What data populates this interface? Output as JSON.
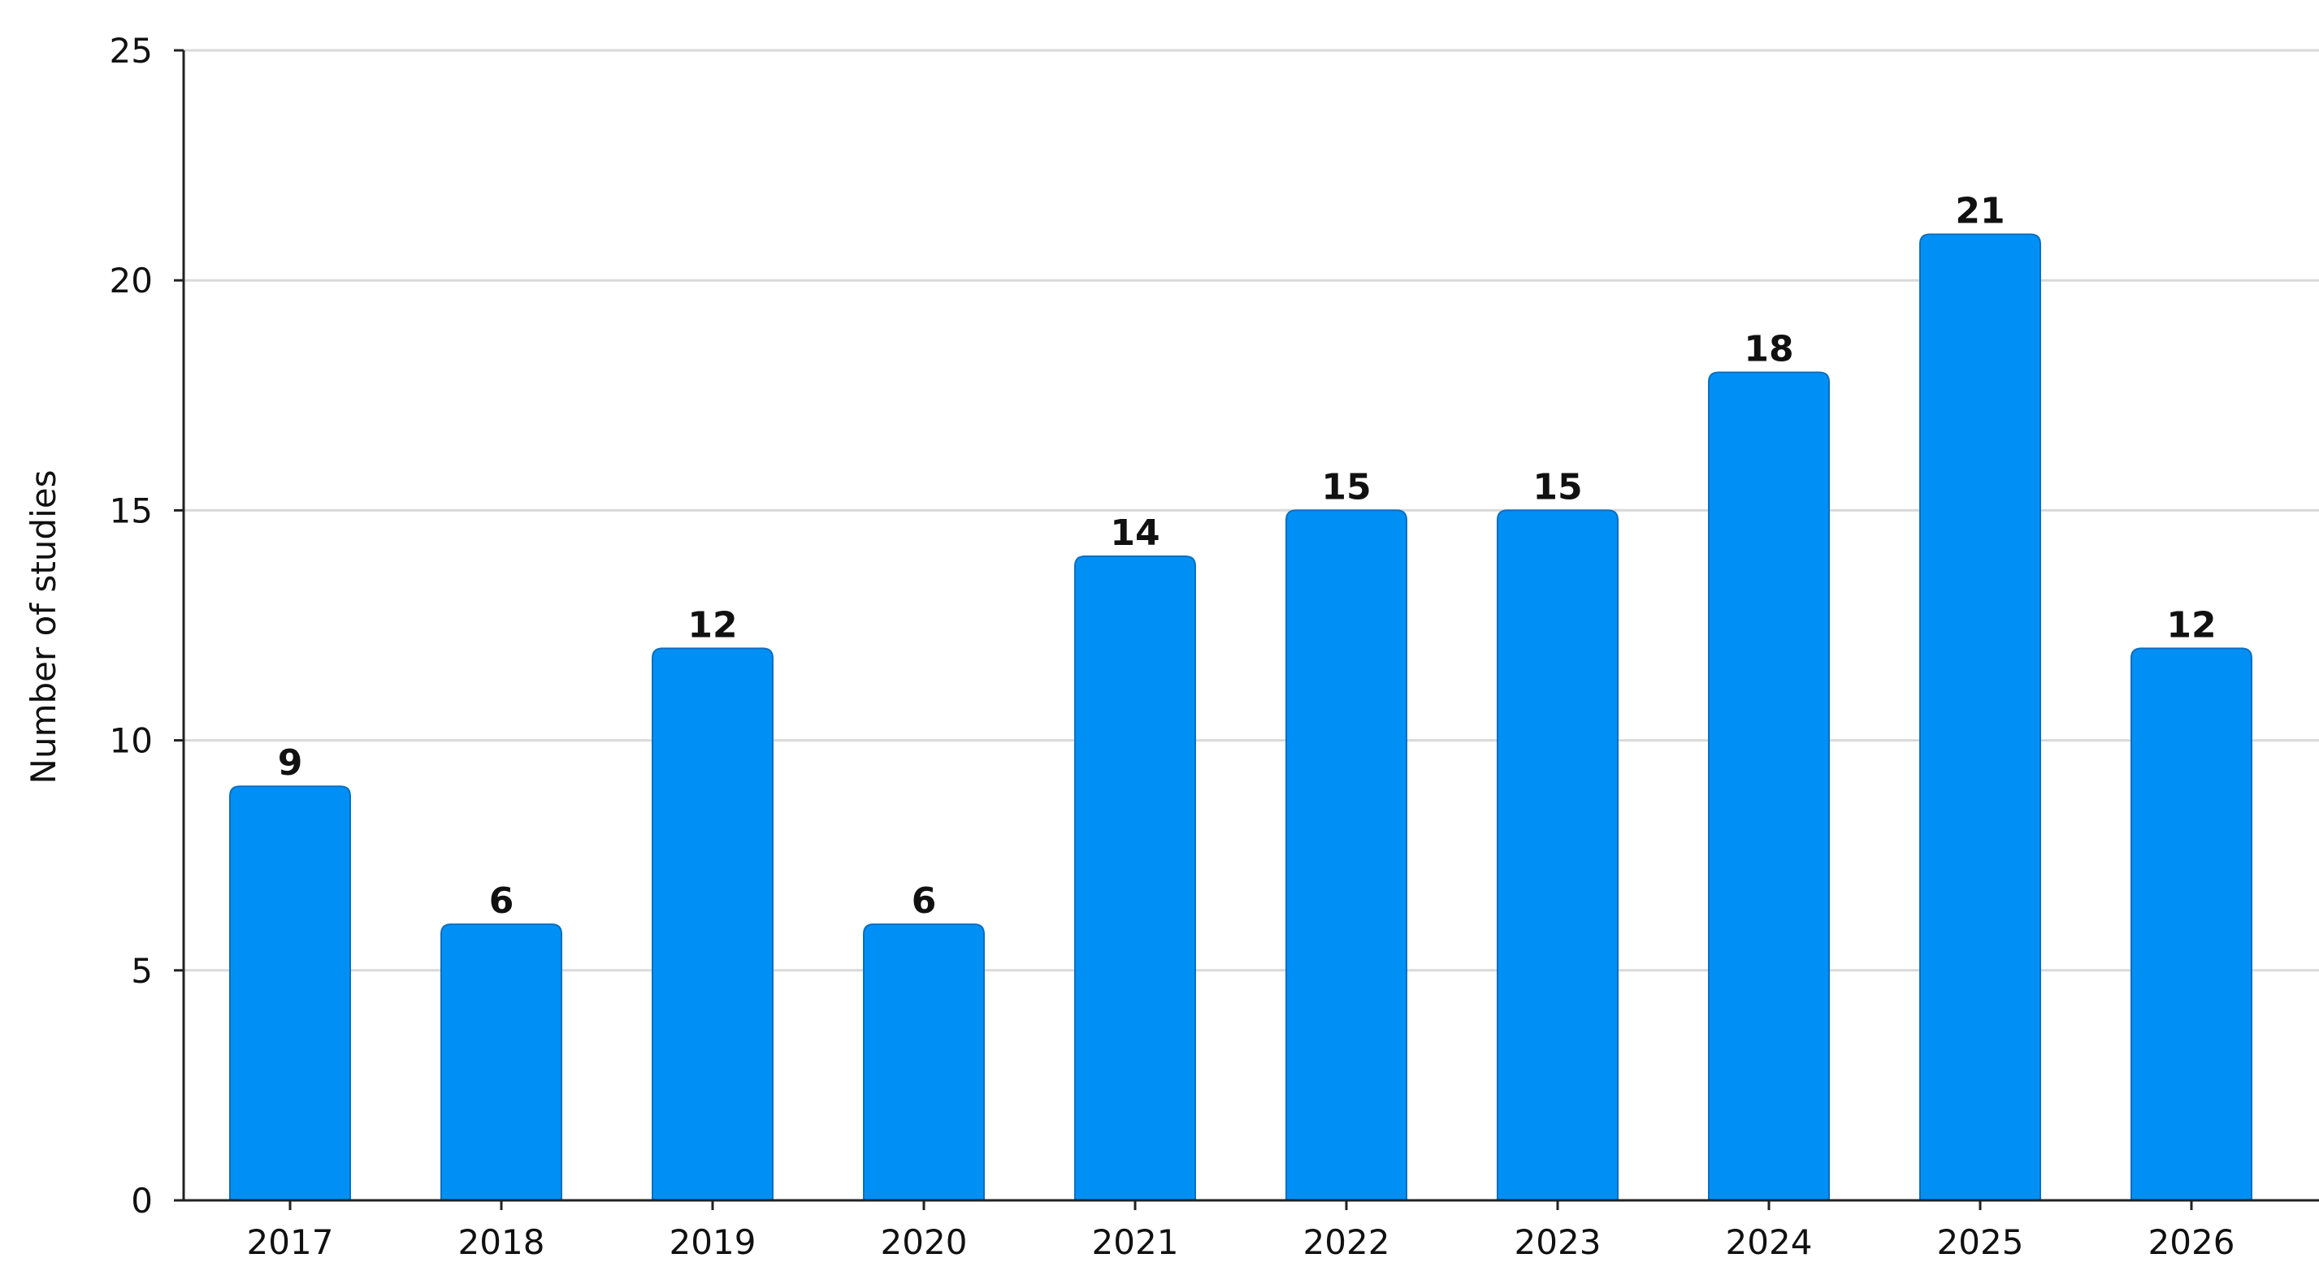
{
  "chart_data": {
    "type": "bar",
    "categories": [
      "2017",
      "2018",
      "2019",
      "2020",
      "2021",
      "2022",
      "2023",
      "2024",
      "2025",
      "2026"
    ],
    "values": [
      9,
      6,
      12,
      6,
      14,
      15,
      15,
      18,
      21,
      12
    ],
    "xlabel": "",
    "ylabel": "Number of studies",
    "ylim": [
      0,
      25
    ],
    "yticks": [
      0,
      5,
      10,
      15,
      20,
      25
    ],
    "grid": true,
    "legend": "none",
    "colors": {
      "bar_fill": "#0090f5",
      "bar_stroke": "#0a6fc0",
      "grid": "#d9d9d9",
      "axis": "#222222"
    }
  }
}
